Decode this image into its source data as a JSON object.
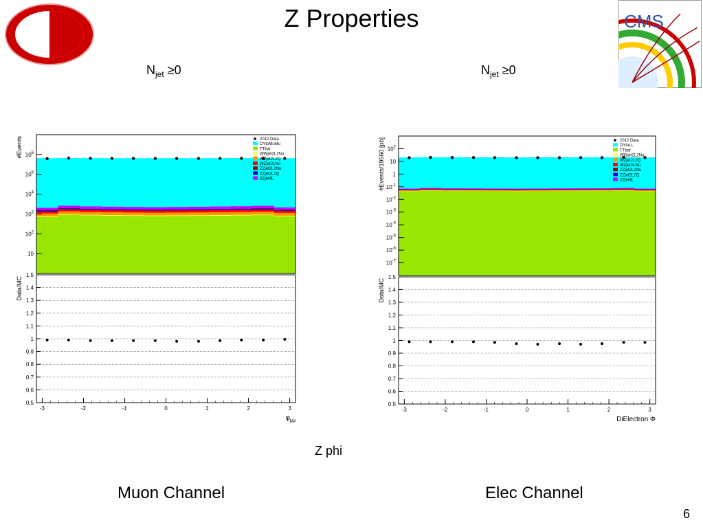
{
  "slide": {
    "title": "Z Properties",
    "subtitle": "Z phi",
    "page_number": "6",
    "left_caption": "Muon Channel",
    "right_caption": "Elec Channel",
    "left_njet": {
      "base": "N",
      "sub": "jet",
      "tail": " ≥0"
    },
    "right_njet": {
      "base": "N",
      "sub": "jet",
      "tail": " ≥0"
    },
    "logo_left": "university-logo",
    "logo_right": {
      "text": "CMS",
      "name": "cms-logo"
    }
  },
  "chart_data": [
    {
      "type": "area",
      "channel": "muon",
      "ylabel": "#Events",
      "yscale": "log",
      "ylim": [
        1,
        10000000
      ],
      "xlim": [
        -3.14,
        3.14
      ],
      "yticks": [
        {
          "v": 10,
          "label": "10"
        },
        {
          "v": 100,
          "label": "10",
          "exp": "2"
        },
        {
          "v": 1000,
          "label": "10",
          "exp": "3"
        },
        {
          "v": 10000,
          "label": "10",
          "exp": "4"
        },
        {
          "v": 100000,
          "label": "10",
          "exp": "5"
        },
        {
          "v": 1000000,
          "label": "10",
          "exp": "6"
        }
      ],
      "x": [
        -2.88,
        -2.36,
        -1.83,
        -1.31,
        -0.79,
        -0.26,
        0.26,
        0.79,
        1.31,
        1.83,
        2.36,
        2.88
      ],
      "stack": [
        {
          "name": "TTbar",
          "color": "#99e600",
          "values": [
            700,
            900,
            850,
            820,
            800,
            780,
            790,
            800,
            820,
            840,
            870,
            760
          ]
        },
        {
          "name": "WWjet2L2Nu",
          "color": "#ffff66",
          "values": [
            60,
            70,
            65,
            62,
            60,
            58,
            60,
            62,
            64,
            66,
            68,
            58
          ]
        },
        {
          "name": "WZjet2L2Q",
          "color": "#ff9900",
          "values": [
            300,
            380,
            350,
            340,
            330,
            320,
            330,
            340,
            350,
            360,
            380,
            320
          ]
        },
        {
          "name": "WZjet3LNu",
          "color": "#ff0000",
          "values": [
            250,
            320,
            290,
            280,
            270,
            260,
            270,
            280,
            290,
            300,
            320,
            260
          ]
        },
        {
          "name": "ZZjet2L2Nu",
          "color": "#990000",
          "values": [
            80,
            100,
            90,
            88,
            85,
            82,
            85,
            88,
            90,
            92,
            100,
            80
          ]
        },
        {
          "name": "ZZjet2L2Q",
          "color": "#0000cc",
          "values": [
            150,
            180,
            170,
            165,
            160,
            155,
            160,
            165,
            170,
            175,
            180,
            150
          ]
        },
        {
          "name": "ZZjet4L",
          "color": "#cc00ff",
          "values": [
            500,
            650,
            600,
            580,
            560,
            540,
            560,
            580,
            600,
            620,
            650,
            520
          ]
        },
        {
          "name": "DYtoMuMu",
          "color": "#00ffff",
          "values": [
            650000,
            660000,
            655000,
            652000,
            650000,
            648000,
            650000,
            652000,
            655000,
            658000,
            660000,
            650000
          ]
        }
      ],
      "data_series": {
        "name": "2012 Data",
        "values": [
          620000,
          650000,
          640000,
          635000,
          632000,
          630000,
          628000,
          626000,
          632000,
          638000,
          640000,
          636000
        ]
      },
      "legend": [
        "2012 Data",
        "DYtoMuMu",
        "TTbar",
        "WWjet2L2Nu",
        "WZjet2L2Q",
        "WZjet3LNu",
        "ZZjet2L2Nu",
        "ZZjet2L2Q",
        "ZZjet4L"
      ],
      "legend_position": "top-right",
      "ratio": {
        "ylabel": "Data/MC",
        "ylim": [
          0.5,
          1.5
        ],
        "yticks": [
          "0.5",
          "0.6",
          "0.7",
          "0.8",
          "0.9",
          "1",
          "1.1",
          "1.2",
          "1.3",
          "1.4",
          "1.5"
        ],
        "xticks": [
          "-3",
          "-2",
          "-1",
          "0",
          "1",
          "2",
          "3"
        ],
        "xlabel": "φ",
        "xlabel_sub": "μμ",
        "values": [
          0.99,
          0.99,
          0.985,
          0.985,
          0.985,
          0.985,
          0.98,
          0.98,
          0.985,
          0.99,
          0.99,
          0.995
        ]
      }
    },
    {
      "type": "area",
      "channel": "electron",
      "ylabel": "#Events/19560 [pb]",
      "yscale": "log",
      "ylim": [
        1e-08,
        1000
      ],
      "xlim": [
        -3.14,
        3.14
      ],
      "yticks": [
        {
          "v": 1e-07,
          "label": "10",
          "exp": "-7"
        },
        {
          "v": 1e-06,
          "label": "10",
          "exp": "-6"
        },
        {
          "v": 1e-05,
          "label": "10",
          "exp": "-5"
        },
        {
          "v": 0.0001,
          "label": "10",
          "exp": "-4"
        },
        {
          "v": 0.001,
          "label": "10",
          "exp": "-3"
        },
        {
          "v": 0.01,
          "label": "10",
          "exp": "-2"
        },
        {
          "v": 0.1,
          "label": "10",
          "exp": "-1"
        },
        {
          "v": 1,
          "label": "1"
        },
        {
          "v": 10,
          "label": "10"
        },
        {
          "v": 100,
          "label": "10",
          "exp": "2"
        }
      ],
      "x": [
        -2.88,
        -2.36,
        -1.83,
        -1.31,
        -0.79,
        -0.26,
        0.26,
        0.79,
        1.31,
        1.83,
        2.36,
        2.88
      ],
      "stack": [
        {
          "name": "TTbar",
          "color": "#99e600",
          "values": [
            0.045,
            0.05,
            0.048,
            0.047,
            0.046,
            0.045,
            0.046,
            0.047,
            0.048,
            0.049,
            0.05,
            0.045
          ]
        },
        {
          "name": "WWjet2L2Nu",
          "color": "#ffff66",
          "values": [
            0.002,
            0.002,
            0.002,
            0.002,
            0.002,
            0.002,
            0.002,
            0.002,
            0.002,
            0.002,
            0.002,
            0.002
          ]
        },
        {
          "name": "WZjet2L2Q",
          "color": "#ff9900",
          "values": [
            0.005,
            0.006,
            0.005,
            0.005,
            0.005,
            0.005,
            0.005,
            0.005,
            0.005,
            0.005,
            0.006,
            0.005
          ]
        },
        {
          "name": "WZjet3LNu",
          "color": "#ff0000",
          "values": [
            0.004,
            0.005,
            0.004,
            0.004,
            0.004,
            0.004,
            0.004,
            0.004,
            0.004,
            0.004,
            0.005,
            0.004
          ]
        },
        {
          "name": "ZZjet2L2Nu",
          "color": "#990000",
          "values": [
            0.002,
            0.002,
            0.002,
            0.002,
            0.002,
            0.002,
            0.002,
            0.002,
            0.002,
            0.002,
            0.002,
            0.002
          ]
        },
        {
          "name": "ZZjet2L2Q",
          "color": "#0000cc",
          "values": [
            0.003,
            0.003,
            0.003,
            0.003,
            0.003,
            0.003,
            0.003,
            0.003,
            0.003,
            0.003,
            0.003,
            0.003
          ]
        },
        {
          "name": "ZZjet4L",
          "color": "#cc00ff",
          "values": [
            0.01,
            0.012,
            0.011,
            0.011,
            0.01,
            0.01,
            0.01,
            0.011,
            0.011,
            0.011,
            0.012,
            0.01
          ]
        },
        {
          "name": "DYtoLL",
          "color": "#00ffff",
          "values": [
            20,
            21,
            20.5,
            20.5,
            20.3,
            20.2,
            20.3,
            20.4,
            20.5,
            20.6,
            21,
            20
          ]
        },
        {
          "name": "ZZjet2L2Q",
          "color": "#0000cc",
          "values": [
            0,
            0,
            0,
            0,
            0,
            0,
            0,
            0,
            0,
            0,
            0,
            0
          ]
        }
      ],
      "data_series": {
        "name": "2012 Data",
        "values": [
          19.5,
          20.5,
          20.2,
          20.0,
          19.8,
          19.6,
          19.5,
          19.6,
          19.7,
          19.9,
          20.5,
          20.0
        ]
      },
      "legend": [
        "2012 Data",
        "DYtoLL",
        "TTbar",
        "WWjet2L2Nu",
        "WZjet2L2Q",
        "WZjet3LNu",
        "ZZjet2L2Nu",
        "ZZjet2L2Q",
        "ZZjet4L"
      ],
      "legend_position": "top-right",
      "ratio": {
        "ylabel": "Data/MC",
        "ylim": [
          0.5,
          1.5
        ],
        "yticks": [
          "0.5",
          "0.6",
          "0.7",
          "0.8",
          "0.9",
          "1",
          "1.1",
          "1.2",
          "1.3",
          "1.4",
          "1.5"
        ],
        "xticks": [
          "-3",
          "-2",
          "-1",
          "0",
          "1",
          "2",
          "3"
        ],
        "xlabel": "DiElectron Φ",
        "xlabel_sub": "",
        "values": [
          0.99,
          0.99,
          0.99,
          0.99,
          0.985,
          0.975,
          0.97,
          0.975,
          0.97,
          0.975,
          0.985,
          0.985
        ]
      }
    }
  ]
}
